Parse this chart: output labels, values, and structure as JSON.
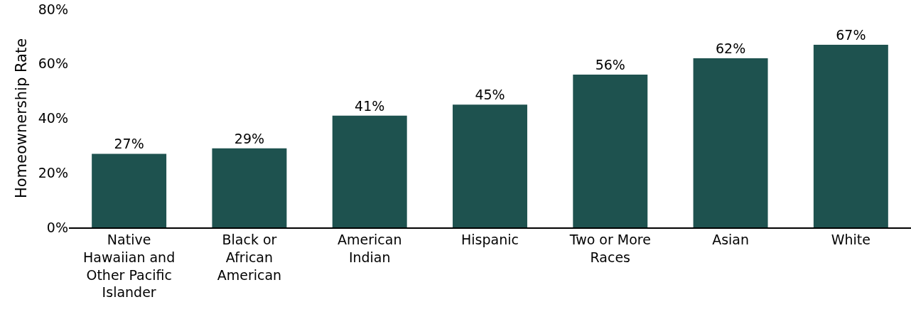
{
  "chart_data": {
    "type": "bar",
    "ylabel": "Homeownership Rate",
    "categories": [
      "Native Hawaiian and Other Pacific Islander",
      "Black or African American",
      "American Indian",
      "Hispanic",
      "Two or More Races",
      "Asian",
      "White"
    ],
    "values": [
      27,
      29,
      41,
      45,
      56,
      62,
      67
    ],
    "value_labels": [
      "27%",
      "29%",
      "41%",
      "45%",
      "56%",
      "62%",
      "67%"
    ],
    "color": "#1e524f",
    "ylim": [
      0,
      80
    ],
    "yticks": [
      {
        "value": 0,
        "label": "0%"
      },
      {
        "value": 20,
        "label": "20%"
      },
      {
        "value": 40,
        "label": "40%"
      },
      {
        "value": 60,
        "label": "60%"
      },
      {
        "value": 80,
        "label": "80%"
      }
    ],
    "grid": false
  }
}
